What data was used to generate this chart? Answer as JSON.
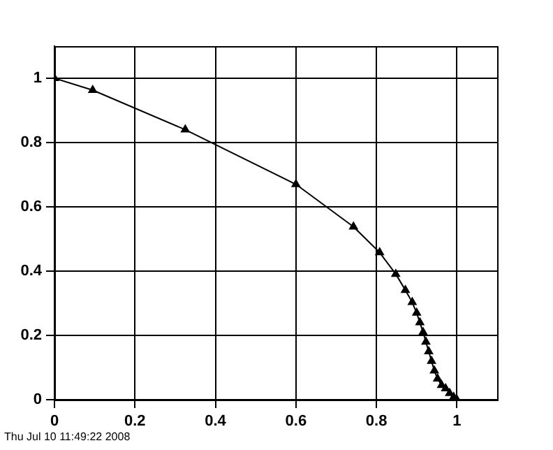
{
  "chart_data": {
    "type": "line",
    "x": [
      0,
      0.095,
      0.325,
      0.6,
      0.743,
      0.808,
      0.848,
      0.872,
      0.889,
      0.9,
      0.908,
      0.916,
      0.923,
      0.93,
      0.937,
      0.944,
      0.952,
      0.962,
      0.972,
      0.982,
      0.992,
      1
    ],
    "values": [
      1,
      0.963,
      0.84,
      0.67,
      0.538,
      0.458,
      0.391,
      0.341,
      0.303,
      0.27,
      0.24,
      0.21,
      0.18,
      0.15,
      0.12,
      0.09,
      0.065,
      0.045,
      0.035,
      0.02,
      0.008,
      0
    ],
    "color": "#000000",
    "marker": "triangle",
    "line_style": "solid",
    "grid": true,
    "legend": false,
    "xlim": [
      0,
      1.1
    ],
    "ylim": [
      0,
      1.1
    ],
    "xticks": [
      0,
      0.2,
      0.4,
      0.6,
      0.8,
      1
    ],
    "yticks": [
      0,
      0.2,
      0.4,
      0.6,
      0.8,
      1
    ],
    "annotations": [
      "Thu Jul 10 11:49:22 2008"
    ]
  }
}
